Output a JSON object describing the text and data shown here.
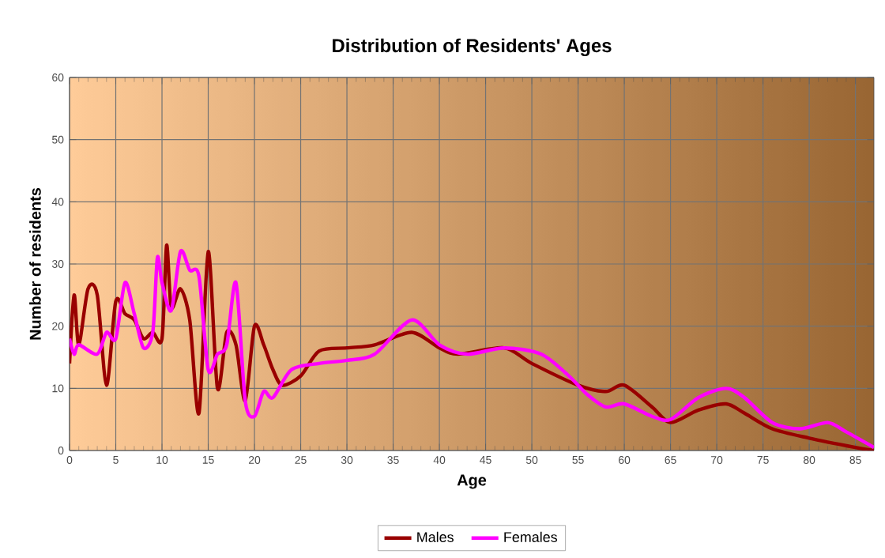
{
  "chart_data": {
    "type": "line",
    "title": "Distribution of Residents' Ages",
    "xlabel": "Age",
    "ylabel": "Number of residents",
    "xlim": [
      0,
      87
    ],
    "ylim": [
      0,
      60
    ],
    "xticks": [
      0,
      5,
      10,
      15,
      20,
      25,
      30,
      35,
      40,
      45,
      50,
      55,
      60,
      65,
      70,
      75,
      80,
      85
    ],
    "yticks": [
      0,
      10,
      20,
      30,
      40,
      50,
      60
    ],
    "grid": true,
    "legend": "bottom",
    "marker": "none",
    "line_style": "solid",
    "series": [
      {
        "name": "Males",
        "color": "#990000",
        "x": [
          0,
          0.5,
          1,
          2,
          3,
          4,
          5,
          6,
          7,
          8,
          9,
          10,
          10.5,
          11,
          12,
          13,
          14,
          15,
          16,
          17,
          18,
          19,
          20,
          21,
          22,
          23,
          25,
          27,
          30,
          33,
          37,
          40,
          42,
          47,
          50,
          55,
          58,
          60,
          63,
          65,
          68,
          71,
          73,
          76,
          80,
          85,
          87
        ],
        "values": [
          14,
          25,
          17,
          26,
          25,
          10.5,
          24,
          22,
          21,
          18,
          19,
          18,
          33,
          23,
          26,
          21,
          6,
          32,
          10,
          19,
          17,
          8,
          20,
          17,
          13,
          10.5,
          12,
          16,
          16.5,
          17,
          19,
          16.5,
          15.5,
          16.5,
          14,
          10.5,
          9.5,
          10.5,
          7,
          4.5,
          6.5,
          7.5,
          6,
          3.5,
          2,
          0.5,
          0
        ]
      },
      {
        "name": "Females",
        "color": "#ff00ff",
        "x": [
          0,
          0.5,
          1,
          3,
          4,
          5,
          6,
          7,
          8,
          9,
          9.5,
          10,
          11,
          12,
          13,
          14,
          15,
          16,
          17,
          18,
          19,
          20,
          21,
          22,
          24,
          27,
          30,
          33,
          37,
          40,
          43,
          47,
          51,
          54,
          56,
          58,
          60,
          63,
          65,
          68,
          71,
          73,
          76,
          79,
          82,
          84,
          87
        ],
        "values": [
          18,
          15.5,
          17,
          15.5,
          19,
          18,
          27,
          22,
          16.5,
          19,
          31,
          27,
          22.5,
          32,
          29,
          28,
          13,
          15.5,
          17,
          27,
          8,
          5.5,
          9.5,
          8.5,
          13,
          14,
          14.5,
          15.5,
          21,
          17,
          15.5,
          16.5,
          15.5,
          12,
          9,
          7,
          7.5,
          5.5,
          5,
          8.5,
          10,
          8.5,
          4.5,
          3.5,
          4.5,
          3,
          0.5
        ]
      }
    ]
  }
}
